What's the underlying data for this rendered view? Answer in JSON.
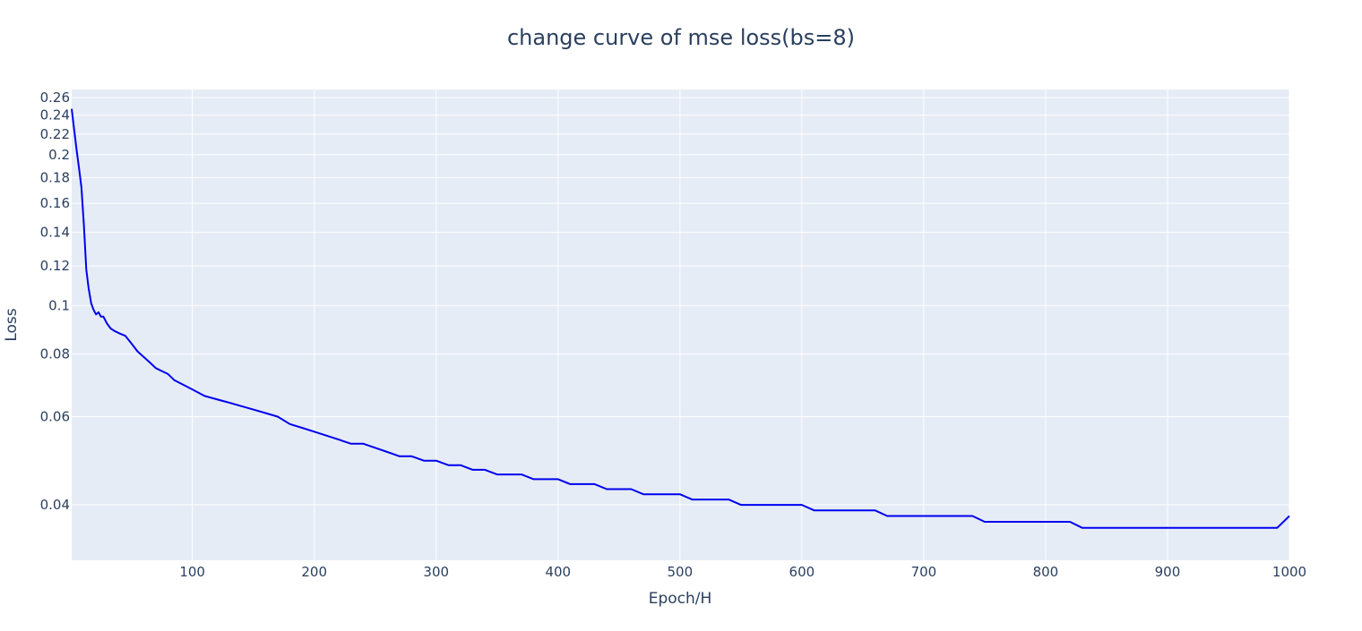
{
  "chart_data": {
    "type": "line",
    "title": "change curve of mse loss(bs=8)",
    "xlabel": "Epoch/H",
    "ylabel": "Loss",
    "xlim": [
      1,
      1000
    ],
    "ylim": [
      0.031,
      0.27
    ],
    "yscale": "log",
    "grid": true,
    "x_ticks": [
      100,
      200,
      300,
      400,
      500,
      600,
      700,
      800,
      900,
      1000
    ],
    "y_ticks": [
      0.04,
      0.06,
      0.08,
      0.1,
      0.12,
      0.14,
      0.16,
      0.18,
      0.2,
      0.22,
      0.24,
      0.26
    ],
    "colors": {
      "line": "#0000ee",
      "plot_bg": "#e5ecf6",
      "grid": "#ffffff",
      "text": "#2a3f5f"
    },
    "series": [
      {
        "x": [
          1,
          3,
          5,
          7,
          9,
          11,
          13,
          15,
          17,
          19,
          21,
          23,
          25,
          27,
          30,
          33,
          36,
          40,
          45,
          50,
          55,
          60,
          65,
          70,
          75,
          80,
          85,
          90,
          95,
          100,
          110,
          120,
          130,
          140,
          150,
          160,
          170,
          180,
          190,
          200,
          210,
          220,
          230,
          240,
          250,
          260,
          270,
          280,
          290,
          300,
          310,
          320,
          330,
          340,
          350,
          360,
          370,
          380,
          390,
          400,
          410,
          420,
          430,
          440,
          450,
          460,
          470,
          480,
          490,
          500,
          510,
          520,
          530,
          540,
          550,
          560,
          570,
          580,
          590,
          600,
          610,
          620,
          630,
          640,
          650,
          660,
          670,
          680,
          690,
          700,
          710,
          720,
          730,
          740,
          750,
          760,
          770,
          780,
          790,
          800,
          810,
          820,
          830,
          840,
          850,
          860,
          870,
          880,
          890,
          900,
          910,
          920,
          930,
          940,
          950,
          960,
          970,
          980,
          990,
          1000
        ],
        "values": [
          0.247,
          0.225,
          0.205,
          0.188,
          0.172,
          0.145,
          0.118,
          0.108,
          0.101,
          0.098,
          0.096,
          0.097,
          0.095,
          0.095,
          0.092,
          0.09,
          0.089,
          0.088,
          0.087,
          0.084,
          0.081,
          0.079,
          0.077,
          0.075,
          0.074,
          0.073,
          0.071,
          0.07,
          0.069,
          0.068,
          0.066,
          0.065,
          0.064,
          0.063,
          0.062,
          0.061,
          0.06,
          0.058,
          0.057,
          0.056,
          0.055,
          0.054,
          0.053,
          0.053,
          0.052,
          0.051,
          0.05,
          0.05,
          0.049,
          0.049,
          0.048,
          0.048,
          0.047,
          0.047,
          0.046,
          0.046,
          0.046,
          0.045,
          0.045,
          0.045,
          0.044,
          0.044,
          0.044,
          0.043,
          0.043,
          0.043,
          0.042,
          0.042,
          0.042,
          0.042,
          0.041,
          0.041,
          0.041,
          0.041,
          0.04,
          0.04,
          0.04,
          0.04,
          0.04,
          0.04,
          0.039,
          0.039,
          0.039,
          0.039,
          0.039,
          0.039,
          0.038,
          0.038,
          0.038,
          0.038,
          0.038,
          0.038,
          0.038,
          0.038,
          0.037,
          0.037,
          0.037,
          0.037,
          0.037,
          0.037,
          0.037,
          0.037,
          0.036,
          0.036,
          0.036,
          0.036,
          0.036,
          0.036,
          0.036,
          0.036,
          0.036,
          0.036,
          0.036,
          0.036,
          0.036,
          0.036,
          0.036,
          0.036,
          0.036,
          0.038
        ]
      }
    ]
  }
}
